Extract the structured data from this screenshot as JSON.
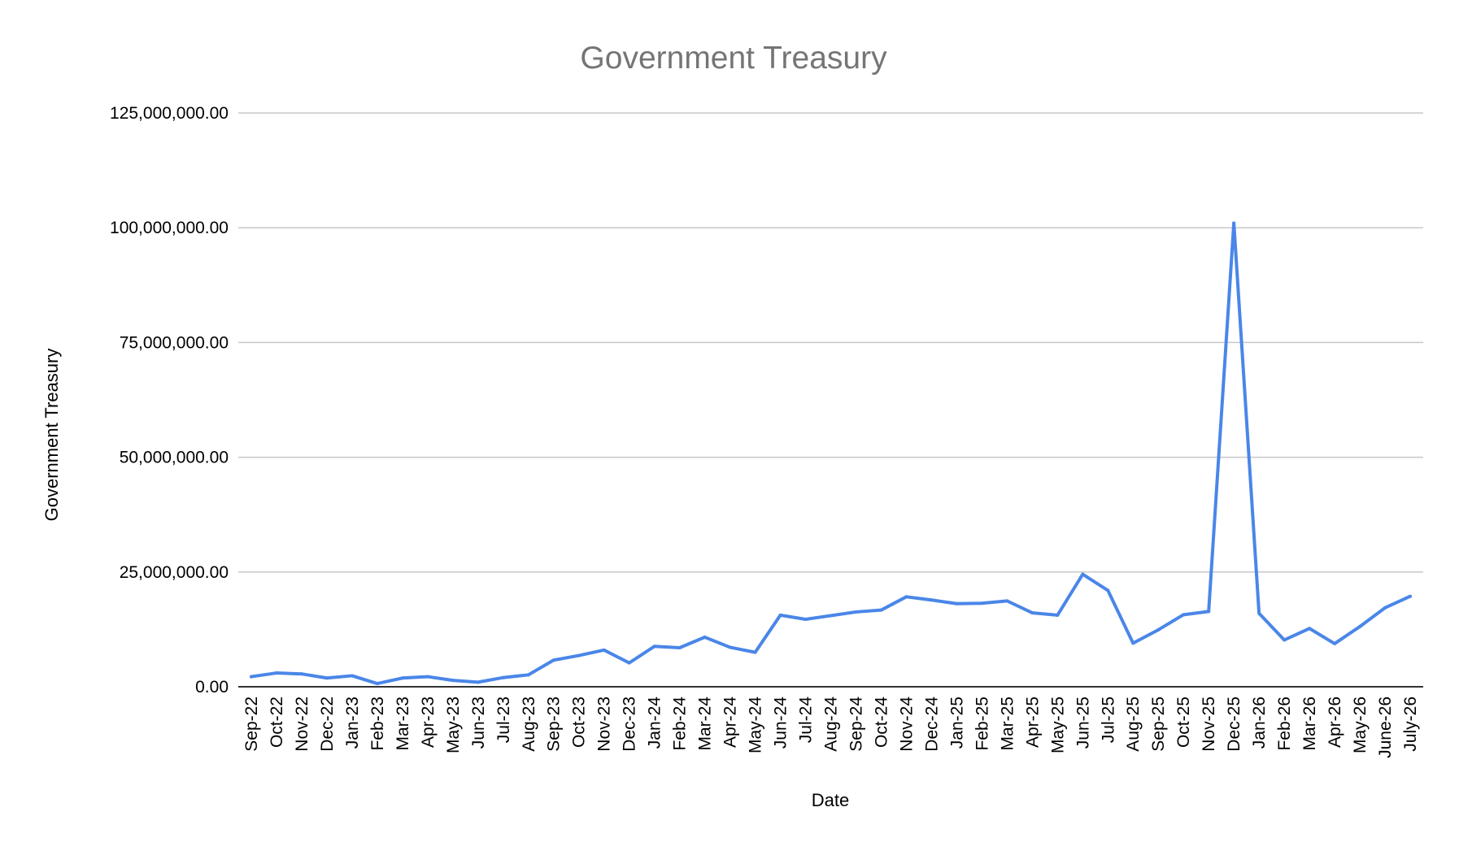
{
  "chart_data": {
    "type": "line",
    "title": "Government Treasury",
    "xlabel": "Date",
    "ylabel": "Government Treasury",
    "ylim": [
      0,
      125000000
    ],
    "y_ticks": [
      {
        "value": 0,
        "label": "0.00"
      },
      {
        "value": 25000000,
        "label": "25,000,000.00"
      },
      {
        "value": 50000000,
        "label": "50,000,000.00"
      },
      {
        "value": 75000000,
        "label": "75,000,000.00"
      },
      {
        "value": 100000000,
        "label": "100,000,000.00"
      },
      {
        "value": 125000000,
        "label": "125,000,000.00"
      }
    ],
    "grid": true,
    "legend": "none",
    "line_color": "#4a86e8",
    "categories": [
      "Sep-22",
      "Oct-22",
      "Nov-22",
      "Dec-22",
      "Jan-23",
      "Feb-23",
      "Mar-23",
      "Apr-23",
      "May-23",
      "Jun-23",
      "Jul-23",
      "Aug-23",
      "Sep-23",
      "Oct-23",
      "Nov-23",
      "Dec-23",
      "Jan-24",
      "Feb-24",
      "Mar-24",
      "Apr-24",
      "May-24",
      "Jun-24",
      "Jul-24",
      "Aug-24",
      "Sep-24",
      "Oct-24",
      "Nov-24",
      "Dec-24",
      "Jan-25",
      "Feb-25",
      "Mar-25",
      "Apr-25",
      "May-25",
      "Jun-25",
      "Jul-25",
      "Aug-25",
      "Sep-25",
      "Oct-25",
      "Nov-25",
      "Dec-25",
      "Jan-26",
      "Feb-26",
      "Mar-26",
      "Apr-26",
      "May-26",
      "June-26",
      "July-26"
    ],
    "series": [
      {
        "values": [
          2200000,
          3000000,
          2800000,
          1900000,
          2400000,
          700000,
          1900000,
          2200000,
          1400000,
          1000000,
          2000000,
          2600000,
          5800000,
          6800000,
          8000000,
          5200000,
          8800000,
          8500000,
          10800000,
          8600000,
          7500000,
          15600000,
          14700000,
          15500000,
          16300000,
          16700000,
          19600000,
          18900000,
          18100000,
          18200000,
          18700000,
          16100000,
          15600000,
          24500000,
          21000000,
          9500000,
          12400000,
          15700000,
          16400000,
          101000000,
          16000000,
          10200000,
          12700000,
          9400000,
          13100000,
          17200000,
          19700000
        ]
      }
    ]
  }
}
